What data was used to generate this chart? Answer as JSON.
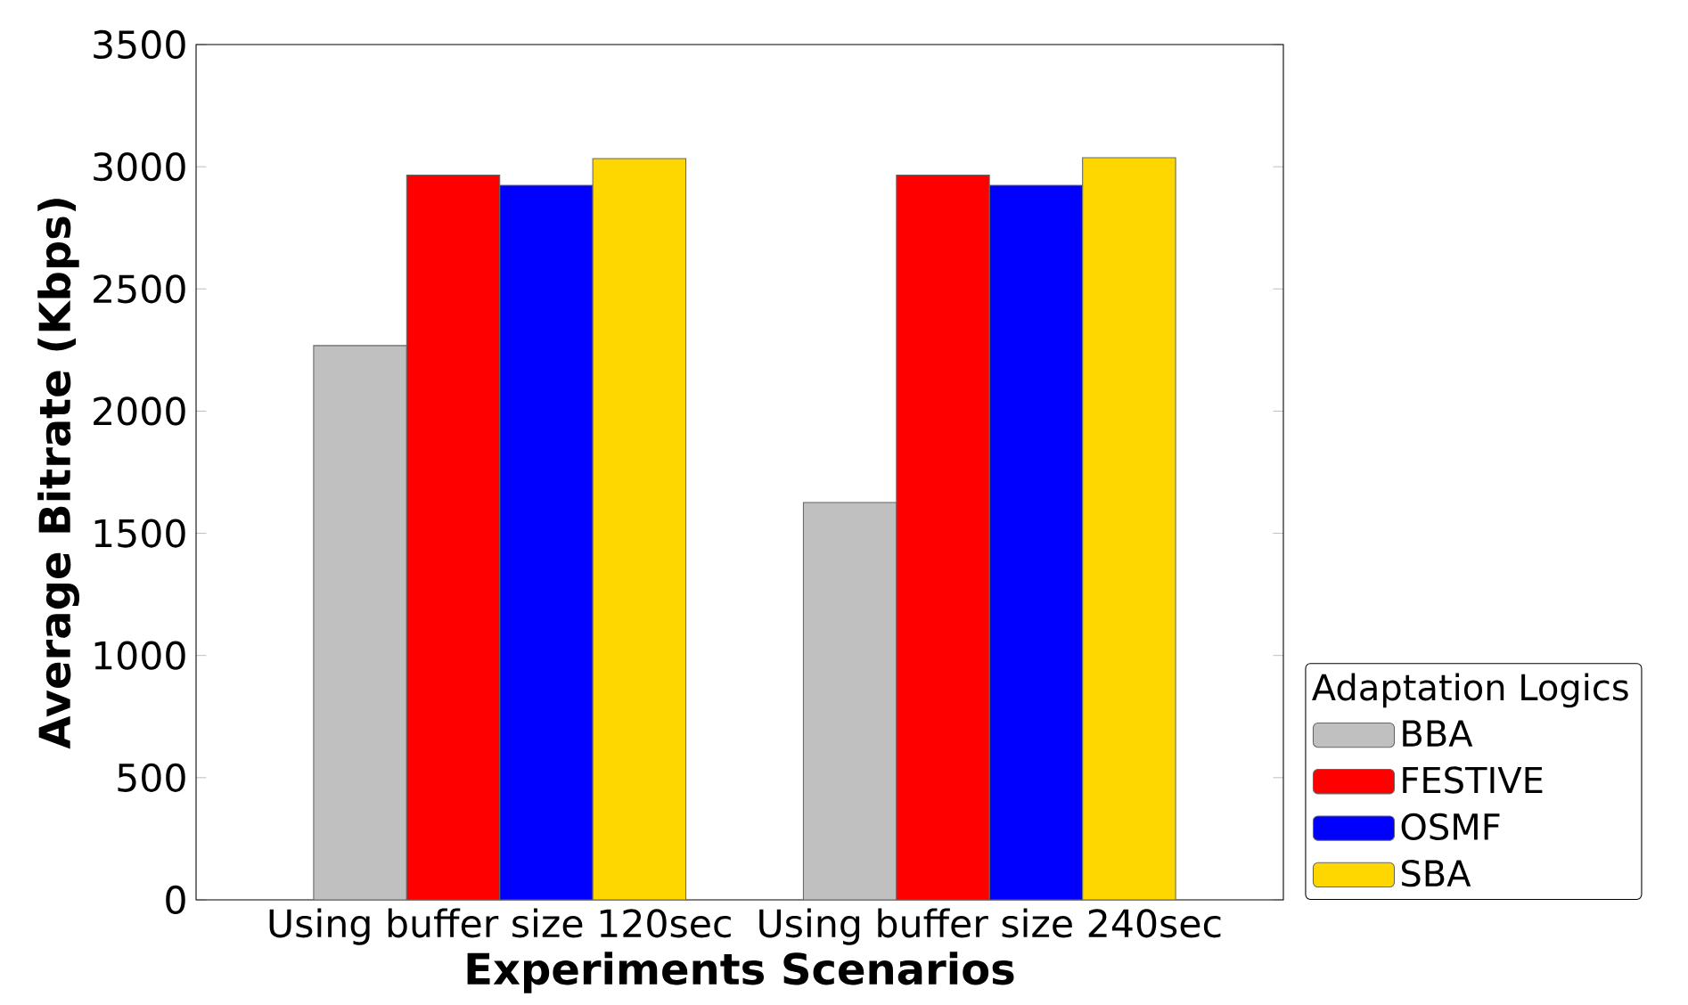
{
  "chart_data": {
    "type": "bar",
    "xlabel": "Experiments Scenarios",
    "ylabel": "Average Bitrate (Kbps)",
    "legend_title": "Adaptation Logics",
    "categories": [
      "Using buffer size 120sec",
      "Using buffer size 240sec"
    ],
    "series": [
      {
        "name": "BBA",
        "color": "#c0c0c0",
        "values": [
          2268,
          1626
        ]
      },
      {
        "name": "FESTIVE",
        "color": "#ff0000",
        "values": [
          2966,
          2966
        ]
      },
      {
        "name": "OSMF",
        "color": "#0000ff",
        "values": [
          2924,
          2924
        ]
      },
      {
        "name": "SBA",
        "color": "#ffd700",
        "values": [
          3033,
          3037
        ]
      }
    ],
    "ylim": [
      0,
      3500
    ],
    "yticks": [
      0,
      500,
      1000,
      1500,
      2000,
      2500,
      3000,
      3500
    ],
    "grid": false,
    "legend": "bottom right"
  }
}
